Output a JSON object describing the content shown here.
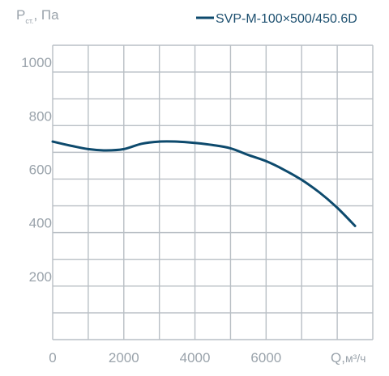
{
  "chart_data": {
    "type": "line",
    "ylabel_main": "P",
    "ylabel_sub": "ст.",
    "ylabel_unit": ", Па",
    "xlabel": "Q,",
    "xlabel_unit": "м³/ч",
    "x_ticks": [
      {
        "value": 0,
        "label": "0"
      },
      {
        "value": 2000,
        "label": "2000"
      },
      {
        "value": 4000,
        "label": "4000"
      },
      {
        "value": 6000,
        "label": "6000"
      }
    ],
    "y_ticks": [
      {
        "value": 200,
        "label": "200"
      },
      {
        "value": 400,
        "label": "400"
      },
      {
        "value": 600,
        "label": "600"
      },
      {
        "value": 800,
        "label": "800"
      },
      {
        "value": 1000,
        "label": "1000"
      }
    ],
    "xlim": [
      0,
      9000
    ],
    "ylim": [
      0,
      1100
    ],
    "grid": true,
    "legend_position": "top-right",
    "line_color": "#0d4a6d",
    "grid_color": "#b9bfc5",
    "series": [
      {
        "name": "SVP-M-100×500/450.6D",
        "x": [
          0,
          500,
          1000,
          1500,
          2000,
          2500,
          3000,
          3500,
          4000,
          4500,
          5000,
          5500,
          6000,
          6500,
          7000,
          7500,
          8000,
          8500
        ],
        "y": [
          740,
          725,
          712,
          707,
          712,
          732,
          740,
          740,
          735,
          727,
          715,
          690,
          667,
          635,
          597,
          550,
          493,
          425
        ]
      }
    ]
  }
}
